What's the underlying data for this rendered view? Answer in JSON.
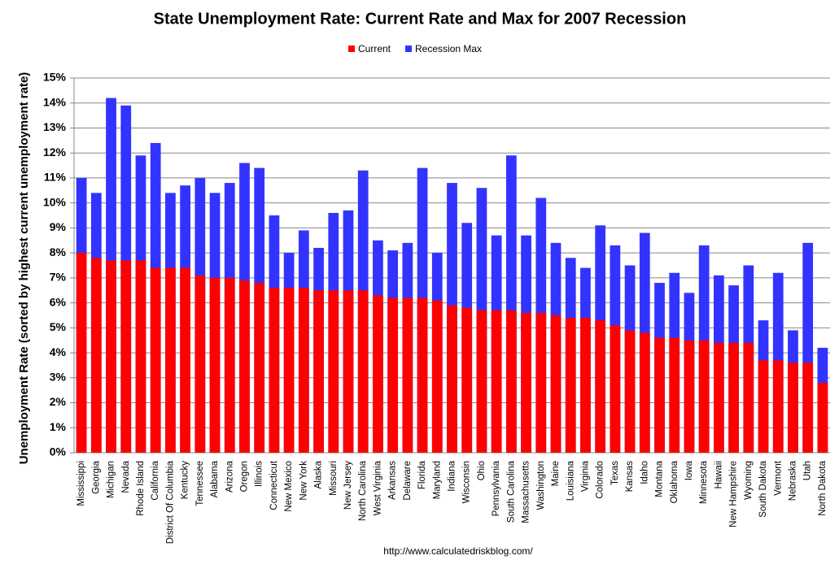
{
  "chart_data": {
    "type": "bar",
    "title": "State Unemployment Rate: Current Rate and Max for 2007 Recession",
    "y_label": "Unemployment Rate (sorted by highest current unemployment rate)",
    "source": "http://www.calculatedriskblog.com/",
    "categories": [
      "Mississippi",
      "Georgia",
      "Michigan",
      "Nevada",
      "Rhode Island",
      "California",
      "District Of Columbia",
      "Kentucky",
      "Tennessee",
      "Alabama",
      "Arizona",
      "Oregon",
      "Illinois",
      "Connecticut",
      "New Mexico",
      "New York",
      "Alaska",
      "Missouri",
      "New Jersey",
      "North Carolina",
      "West Virginia",
      "Arkansas",
      "Delaware",
      "Florida",
      "Maryland",
      "Indiana",
      "Wisconsin",
      "Ohio",
      "Pennsylvania",
      "South Carolina",
      "Massachusetts",
      "Washington",
      "Maine",
      "Louisiana",
      "Virginia",
      "Colorado",
      "Texas",
      "Kansas",
      "Idaho",
      "Montana",
      "Oklahoma",
      "Iowa",
      "Minnesota",
      "Hawaii",
      "New Hampshire",
      "Wyoming",
      "South Dakota",
      "Vermont",
      "Nebraska",
      "Utah",
      "North Dakota"
    ],
    "series": [
      {
        "name": "Recession Max",
        "color": "#3333ff",
        "values": [
          11.0,
          10.4,
          14.2,
          13.9,
          11.9,
          12.4,
          10.4,
          10.7,
          11.0,
          10.4,
          10.8,
          11.6,
          11.4,
          9.5,
          8.0,
          8.9,
          8.2,
          9.6,
          9.7,
          11.3,
          8.5,
          8.1,
          8.4,
          11.4,
          8.0,
          10.8,
          9.2,
          10.6,
          8.7,
          11.9,
          8.7,
          10.2,
          8.4,
          7.8,
          7.4,
          9.1,
          8.3,
          7.5,
          8.8,
          6.8,
          7.2,
          6.4,
          8.3,
          7.1,
          6.7,
          7.5,
          5.3,
          7.2,
          4.9,
          8.4,
          4.2
        ]
      },
      {
        "name": "Current",
        "color": "#ff0000",
        "values": [
          8.0,
          7.8,
          7.7,
          7.7,
          7.7,
          7.4,
          7.4,
          7.4,
          7.1,
          7.0,
          7.0,
          6.9,
          6.8,
          6.6,
          6.6,
          6.6,
          6.5,
          6.5,
          6.5,
          6.5,
          6.3,
          6.2,
          6.2,
          6.2,
          6.1,
          5.9,
          5.8,
          5.7,
          5.7,
          5.7,
          5.6,
          5.6,
          5.5,
          5.4,
          5.4,
          5.3,
          5.1,
          4.9,
          4.8,
          4.6,
          4.6,
          4.5,
          4.5,
          4.4,
          4.4,
          4.4,
          3.7,
          3.7,
          3.6,
          3.6,
          2.8
        ]
      }
    ],
    "legend_order": [
      1,
      0
    ],
    "ylim": [
      0,
      15
    ],
    "yticks": [
      {
        "value": 0,
        "label": "0%"
      },
      {
        "value": 1,
        "label": "1%"
      },
      {
        "value": 2,
        "label": "2%"
      },
      {
        "value": 3,
        "label": "3%"
      },
      {
        "value": 4,
        "label": "4%"
      },
      {
        "value": 5,
        "label": "5%"
      },
      {
        "value": 6,
        "label": "6%"
      },
      {
        "value": 7,
        "label": "7%"
      },
      {
        "value": 8,
        "label": "8%"
      },
      {
        "value": 9,
        "label": "9%"
      },
      {
        "value": 10,
        "label": "10%"
      },
      {
        "value": 11,
        "label": "11%"
      },
      {
        "value": 12,
        "label": "12%"
      },
      {
        "value": 13,
        "label": "13%"
      },
      {
        "value": 14,
        "label": "14%"
      },
      {
        "value": 15,
        "label": "15%"
      }
    ],
    "grid": true,
    "legend": "top"
  }
}
